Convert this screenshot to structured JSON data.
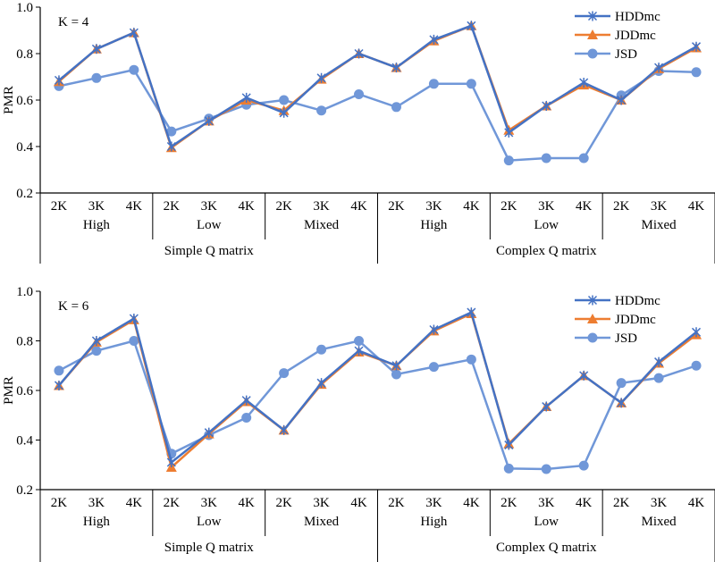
{
  "chart_data": [
    {
      "type": "line",
      "annotation": "K = 4",
      "ylabel": "PMR",
      "ylim": [
        0.2,
        1.0
      ],
      "yticks": [
        "0.2",
        "0.4",
        "0.6",
        "0.8",
        "1.0"
      ],
      "legend_placement": "top-right",
      "categories_level1": [
        "2K",
        "3K",
        "4K",
        "2K",
        "3K",
        "4K",
        "2K",
        "3K",
        "4K",
        "2K",
        "3K",
        "4K",
        "2K",
        "3K",
        "4K",
        "2K",
        "3K",
        "4K"
      ],
      "categories_level2": [
        "High",
        "Low",
        "Mixed",
        "High",
        "Low",
        "Mixed"
      ],
      "categories_level3": [
        "Simple Q matrix",
        "Complex Q matrix"
      ],
      "series": [
        {
          "name": "HDDmc",
          "color": "#4472C4",
          "marker": "asterisk",
          "values": [
            0.685,
            0.82,
            0.89,
            0.4,
            0.51,
            0.61,
            0.545,
            0.695,
            0.8,
            0.74,
            0.86,
            0.92,
            0.46,
            0.575,
            0.675,
            0.6,
            0.74,
            0.83
          ]
        },
        {
          "name": "JDDmc",
          "color": "#ED7D31",
          "marker": "triangle",
          "values": [
            0.68,
            0.82,
            0.89,
            0.395,
            0.51,
            0.6,
            0.555,
            0.69,
            0.8,
            0.74,
            0.855,
            0.92,
            0.47,
            0.575,
            0.665,
            0.6,
            0.735,
            0.825
          ]
        },
        {
          "name": "JSD",
          "color": "#7097D8",
          "marker": "circle",
          "values": [
            0.66,
            0.695,
            0.73,
            0.465,
            0.52,
            0.58,
            0.6,
            0.555,
            0.625,
            0.57,
            0.67,
            0.67,
            0.34,
            0.35,
            0.35,
            0.62,
            0.725,
            0.72
          ]
        }
      ]
    },
    {
      "type": "line",
      "annotation": "K = 6",
      "ylabel": "PMR",
      "ylim": [
        0.2,
        1.0
      ],
      "yticks": [
        "0.2",
        "0.4",
        "0.6",
        "0.8",
        "1.0"
      ],
      "legend_placement": "top-right",
      "categories_level1": [
        "2K",
        "3K",
        "4K",
        "2K",
        "3K",
        "4K",
        "2K",
        "3K",
        "4K",
        "2K",
        "3K",
        "4K",
        "2K",
        "3K",
        "4K",
        "2K",
        "3K",
        "4K"
      ],
      "categories_level2": [
        "High",
        "Low",
        "Mixed",
        "High",
        "Low",
        "Mixed"
      ],
      "categories_level3": [
        "Simple Q matrix",
        "Complex Q matrix"
      ],
      "series": [
        {
          "name": "HDDmc",
          "color": "#4472C4",
          "marker": "asterisk",
          "values": [
            0.62,
            0.8,
            0.89,
            0.31,
            0.43,
            0.56,
            0.44,
            0.63,
            0.76,
            0.7,
            0.845,
            0.915,
            0.38,
            0.535,
            0.66,
            0.55,
            0.715,
            0.835
          ]
        },
        {
          "name": "JDDmc",
          "color": "#ED7D31",
          "marker": "triangle",
          "values": [
            0.62,
            0.795,
            0.885,
            0.29,
            0.425,
            0.555,
            0.44,
            0.625,
            0.755,
            0.7,
            0.84,
            0.91,
            0.385,
            0.535,
            0.66,
            0.55,
            0.71,
            0.825
          ]
        },
        {
          "name": "JSD",
          "color": "#7097D8",
          "marker": "circle",
          "values": [
            0.68,
            0.76,
            0.8,
            0.345,
            0.42,
            0.49,
            0.67,
            0.765,
            0.8,
            0.665,
            0.695,
            0.725,
            0.285,
            0.283,
            0.297,
            0.63,
            0.65,
            0.7
          ]
        }
      ]
    }
  ]
}
